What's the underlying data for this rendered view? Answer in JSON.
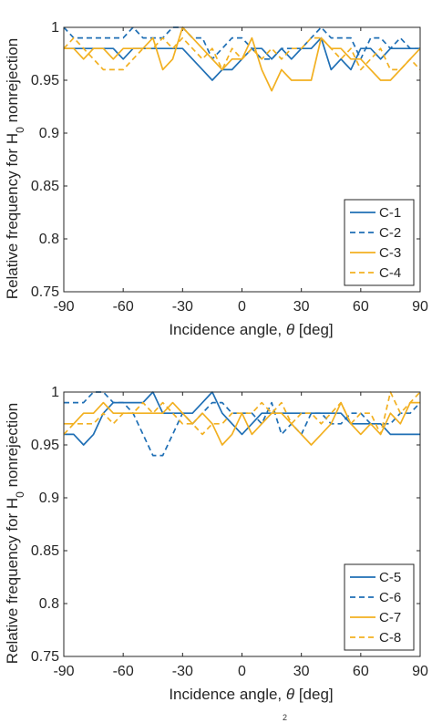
{
  "chart_data": [
    {
      "type": "line",
      "ylabel": "Relative frequency for H0 nonrejection",
      "ylabel_main": "Relative frequency for H",
      "ylabel_sub": "0",
      "ylabel_rest": " nonrejection",
      "xlabel_prefix": "Incidence angle, ",
      "xlabel_symbol": "θ",
      "xlabel_suffix": " [deg]",
      "xlim": [
        -90,
        90
      ],
      "ylim": [
        0.75,
        1.0
      ],
      "xticks": [
        "-90",
        "-60",
        "-30",
        "0",
        "30",
        "60",
        "90"
      ],
      "yticks": [
        "0.75",
        "0.8",
        "0.85",
        "0.9",
        "0.95",
        "1"
      ],
      "legend_position": "bottom-right",
      "x": [
        -90,
        -85,
        -80,
        -75,
        -70,
        -65,
        -60,
        -55,
        -50,
        -45,
        -40,
        -35,
        -30,
        -25,
        -20,
        -15,
        -10,
        -5,
        0,
        5,
        10,
        15,
        20,
        25,
        30,
        35,
        40,
        45,
        50,
        55,
        60,
        65,
        70,
        75,
        80,
        85,
        90
      ],
      "series": [
        {
          "name": "C-1",
          "color": "#1f6fb5",
          "dash": false,
          "values": [
            0.98,
            0.98,
            0.98,
            0.98,
            0.98,
            0.98,
            0.97,
            0.98,
            0.98,
            0.98,
            0.98,
            0.98,
            0.98,
            0.97,
            0.96,
            0.95,
            0.96,
            0.96,
            0.97,
            0.98,
            0.98,
            0.97,
            0.98,
            0.97,
            0.98,
            0.98,
            0.99,
            0.96,
            0.97,
            0.96,
            0.98,
            0.98,
            0.97,
            0.98,
            0.98,
            0.98,
            0.98
          ]
        },
        {
          "name": "C-2",
          "color": "#1f6fb5",
          "dash": true,
          "values": [
            1.0,
            0.99,
            0.99,
            0.99,
            0.99,
            0.99,
            0.99,
            1.0,
            0.99,
            0.99,
            0.99,
            1.0,
            1.0,
            0.99,
            0.99,
            0.97,
            0.98,
            0.99,
            0.99,
            0.98,
            0.97,
            0.97,
            0.98,
            0.98,
            0.98,
            0.99,
            1.0,
            0.99,
            0.99,
            0.99,
            0.97,
            0.99,
            0.99,
            0.98,
            0.99,
            0.98,
            0.98
          ]
        },
        {
          "name": "C-3",
          "color": "#f2b021",
          "dash": false,
          "values": [
            0.98,
            0.98,
            0.97,
            0.98,
            0.98,
            0.97,
            0.98,
            0.98,
            0.98,
            0.99,
            0.96,
            0.97,
            1.0,
            0.99,
            0.98,
            0.97,
            0.96,
            0.97,
            0.97,
            0.99,
            0.96,
            0.94,
            0.96,
            0.95,
            0.95,
            0.95,
            0.99,
            0.98,
            0.98,
            0.97,
            0.97,
            0.96,
            0.95,
            0.95,
            0.96,
            0.97,
            0.98
          ]
        },
        {
          "name": "C-4",
          "color": "#f2b021",
          "dash": true,
          "values": [
            0.98,
            0.99,
            0.98,
            0.97,
            0.96,
            0.96,
            0.96,
            0.97,
            0.98,
            0.98,
            0.99,
            0.98,
            0.99,
            0.98,
            0.97,
            0.98,
            0.96,
            0.98,
            0.97,
            0.98,
            0.97,
            0.98,
            0.97,
            0.98,
            0.98,
            0.99,
            0.99,
            0.98,
            0.97,
            0.98,
            0.96,
            0.97,
            0.98,
            0.96,
            0.96,
            0.97,
            0.96
          ]
        }
      ]
    },
    {
      "type": "line",
      "ylabel": "Relative frequency for H0 nonrejection",
      "ylabel_main": "Relative frequency for H",
      "ylabel_sub": "0",
      "ylabel_rest": " nonrejection",
      "xlabel_prefix": "Incidence angle, ",
      "xlabel_symbol": "θ",
      "xlabel_suffix": " [deg]",
      "xlim": [
        -90,
        90
      ],
      "ylim": [
        0.75,
        1.0
      ],
      "xticks": [
        "-90",
        "-60",
        "-30",
        "0",
        "30",
        "60",
        "90"
      ],
      "yticks": [
        "0.75",
        "0.8",
        "0.85",
        "0.9",
        "0.95",
        "1"
      ],
      "legend_position": "bottom-right",
      "x": [
        -90,
        -85,
        -80,
        -75,
        -70,
        -65,
        -60,
        -55,
        -50,
        -45,
        -40,
        -35,
        -30,
        -25,
        -20,
        -15,
        -10,
        -5,
        0,
        5,
        10,
        15,
        20,
        25,
        30,
        35,
        40,
        45,
        50,
        55,
        60,
        65,
        70,
        75,
        80,
        85,
        90
      ],
      "series": [
        {
          "name": "C-5",
          "color": "#1f6fb5",
          "dash": false,
          "values": [
            0.96,
            0.96,
            0.95,
            0.96,
            0.98,
            0.99,
            0.99,
            0.99,
            0.99,
            1.0,
            0.98,
            0.98,
            0.98,
            0.98,
            0.99,
            1.0,
            0.98,
            0.97,
            0.96,
            0.97,
            0.98,
            0.98,
            0.98,
            0.98,
            0.98,
            0.98,
            0.98,
            0.98,
            0.98,
            0.97,
            0.97,
            0.97,
            0.97,
            0.96,
            0.96,
            0.96,
            0.96
          ]
        },
        {
          "name": "C-6",
          "color": "#1f6fb5",
          "dash": true,
          "values": [
            0.99,
            0.99,
            0.99,
            1.0,
            1.0,
            0.99,
            0.99,
            0.98,
            0.96,
            0.94,
            0.94,
            0.96,
            0.98,
            0.97,
            0.98,
            0.99,
            0.99,
            0.98,
            0.98,
            0.98,
            0.97,
            0.99,
            0.96,
            0.97,
            0.96,
            0.98,
            0.98,
            0.97,
            0.97,
            0.98,
            0.98,
            0.97,
            0.97,
            0.97,
            0.98,
            0.98,
            0.99
          ]
        },
        {
          "name": "C-7",
          "color": "#f2b021",
          "dash": false,
          "values": [
            0.97,
            0.97,
            0.98,
            0.98,
            0.99,
            0.98,
            0.98,
            0.98,
            0.98,
            0.98,
            0.98,
            0.99,
            0.98,
            0.97,
            0.98,
            0.97,
            0.95,
            0.96,
            0.98,
            0.96,
            0.97,
            0.98,
            0.98,
            0.97,
            0.96,
            0.95,
            0.96,
            0.97,
            0.99,
            0.97,
            0.96,
            0.97,
            0.96,
            0.98,
            0.97,
            0.99,
            0.99
          ]
        },
        {
          "name": "C-8",
          "color": "#f2b021",
          "dash": true,
          "values": [
            0.96,
            0.97,
            0.97,
            0.97,
            0.98,
            0.97,
            0.98,
            0.98,
            0.99,
            0.98,
            0.99,
            0.98,
            0.97,
            0.97,
            0.96,
            0.97,
            0.97,
            0.98,
            0.98,
            0.98,
            0.99,
            0.98,
            0.99,
            0.97,
            0.98,
            0.98,
            0.97,
            0.98,
            0.99,
            0.97,
            0.98,
            0.98,
            0.96,
            1.0,
            0.98,
            0.99,
            1.0
          ]
        }
      ]
    }
  ],
  "footer_mark": "2"
}
